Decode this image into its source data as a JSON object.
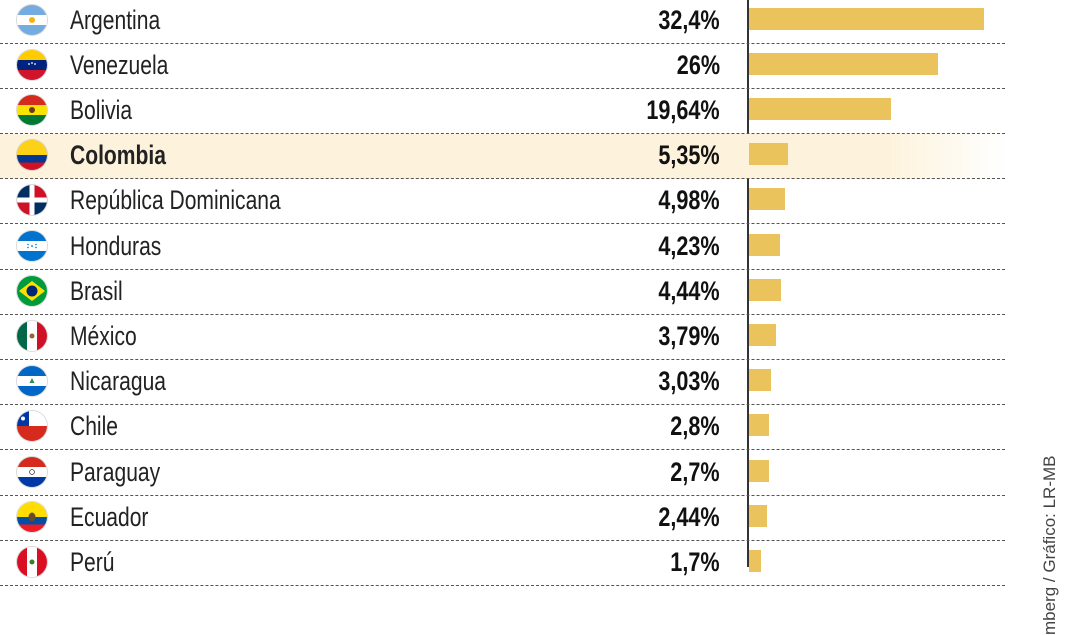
{
  "chart_data": {
    "type": "bar",
    "orientation": "horizontal",
    "categories": [
      "Argentina",
      "Venezuela",
      "Bolivia",
      "Colombia",
      "República Dominicana",
      "Honduras",
      "Brasil",
      "México",
      "Nicaragua",
      "Chile",
      "Paraguay",
      "Ecuador",
      "Perú"
    ],
    "values": [
      32.4,
      26,
      19.64,
      5.35,
      4.98,
      4.23,
      4.44,
      3.79,
      3.03,
      2.8,
      2.7,
      2.44,
      1.7
    ],
    "value_labels": [
      "32,4%",
      "26%",
      "19,64%",
      "5,35%",
      "4,98%",
      "4,23%",
      "4,44%",
      "3,79%",
      "3,03%",
      "2,8%",
      "2,7%",
      "2,44%",
      "1,7%"
    ],
    "highlight": "Colombia",
    "bar_color": "#ebc35c",
    "highlight_color": "#fdf3dc",
    "grid": "dashed row separators",
    "legend": "none",
    "flag_icons": [
      "flag-argentina-icon",
      "flag-venezuela-icon",
      "flag-bolivia-icon",
      "flag-colombia-icon",
      "flag-dominican-republic-icon",
      "flag-honduras-icon",
      "flag-brazil-icon",
      "flag-mexico-icon",
      "flag-nicaragua-icon",
      "flag-chile-icon",
      "flag-paraguay-icon",
      "flag-ecuador-icon",
      "flag-peru-icon"
    ]
  },
  "source_text": "mberg / Gráfico: LR-MB"
}
